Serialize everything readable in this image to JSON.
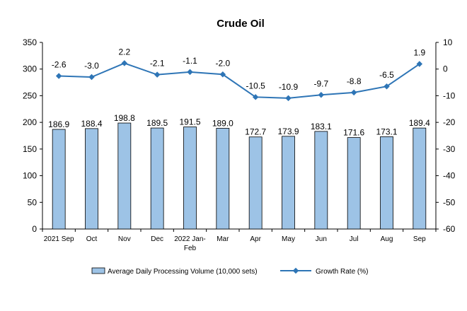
{
  "chart_data": {
    "type": "bar",
    "title": "Crude Oil",
    "categories": [
      "2021 Sep",
      "Oct",
      "Nov",
      "Dec",
      "2022 Jan-\nFeb",
      "Mar",
      "Apr",
      "May",
      "Jun",
      "Jul",
      "Aug",
      "Sep"
    ],
    "series": [
      {
        "name": "Average Daily Processing Volume (10,000 sets)",
        "type": "bar",
        "axis": "left",
        "values": [
          186.9,
          188.4,
          198.8,
          189.5,
          191.5,
          189.0,
          172.7,
          173.9,
          183.1,
          171.6,
          173.1,
          189.4
        ],
        "labels": [
          "186.9",
          "188.4",
          "198.8",
          "189.5",
          "191.5",
          "189.0",
          "172.7",
          "173.9",
          "183.1",
          "171.6",
          "173.1",
          "189.4"
        ]
      },
      {
        "name": "Growth Rate (%)",
        "type": "line",
        "axis": "right",
        "values": [
          -2.6,
          -3.0,
          2.2,
          -2.1,
          -1.1,
          -2.0,
          -10.5,
          -10.9,
          -9.7,
          -8.8,
          -6.5,
          1.9
        ],
        "labels": [
          "-2.6",
          "-3.0",
          "2.2",
          "-2.1",
          "-1.1",
          "-2.0",
          "-10.5",
          "-10.9",
          "-9.7",
          "-8.8",
          "-6.5",
          "1.9"
        ]
      }
    ],
    "left_axis": {
      "ylim": [
        0,
        350
      ],
      "ticks": [
        "0",
        "50",
        "100",
        "150",
        "200",
        "250",
        "300",
        "350"
      ]
    },
    "right_axis": {
      "ylim": [
        -60,
        10
      ],
      "ticks": [
        "-60",
        "-50",
        "-40",
        "-30",
        "-20",
        "-10",
        "0",
        "10"
      ]
    },
    "legend_position": "bottom",
    "grid": false,
    "colors": {
      "bar_fill": "#9dc3e6",
      "bar_stroke": "#000000",
      "line": "#2e75b6",
      "axis": "#000000"
    }
  }
}
